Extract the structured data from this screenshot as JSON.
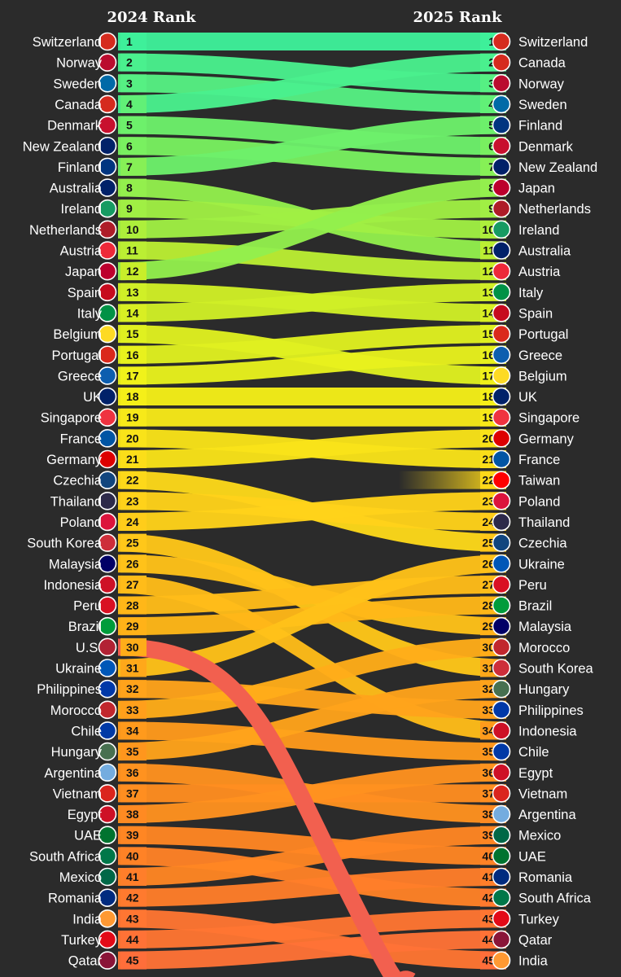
{
  "chart_data": {
    "type": "slope",
    "left_header": "2024 Rank",
    "right_header": "2025 Rank",
    "rank_2024": [
      "Switzerland",
      "Norway",
      "Sweden",
      "Canada",
      "Denmark",
      "New Zealand",
      "Finland",
      "Australia",
      "Ireland",
      "Netherlands",
      "Austria",
      "Japan",
      "Spain",
      "Italy",
      "Belgium",
      "Portugal",
      "Greece",
      "UK",
      "Singapore",
      "France",
      "Germany",
      "Czechia",
      "Thailand",
      "Poland",
      "South Korea",
      "Malaysia",
      "Indonesia",
      "Peru",
      "Brazil",
      "U.S.",
      "Ukraine",
      "Philippines",
      "Morocco",
      "Chile",
      "Hungary",
      "Argentina",
      "Vietnam",
      "Egypt",
      "UAE",
      "South Africa",
      "Mexico",
      "Romania",
      "India",
      "Turkey",
      "Qatar"
    ],
    "rank_2025": [
      "Switzerland",
      "Canada",
      "Norway",
      "Sweden",
      "Finland",
      "Denmark",
      "New Zealand",
      "Japan",
      "Netherlands",
      "Ireland",
      "Australia",
      "Austria",
      "Italy",
      "Spain",
      "Portugal",
      "Greece",
      "Belgium",
      "UK",
      "Singapore",
      "Germany",
      "France",
      "Taiwan",
      "Poland",
      "Thailand",
      "Czechia",
      "Ukraine",
      "Peru",
      "Brazil",
      "Malaysia",
      "Morocco",
      "South Korea",
      "Hungary",
      "Philippines",
      "Indonesia",
      "Chile",
      "Egypt",
      "Vietnam",
      "Argentina",
      "Mexico",
      "UAE",
      "Romania",
      "South Africa",
      "Turkey",
      "Qatar",
      "India"
    ],
    "flows": [
      {
        "country": "Switzerland",
        "rank_2024": 1,
        "rank_2025": 1
      },
      {
        "country": "Norway",
        "rank_2024": 2,
        "rank_2025": 3
      },
      {
        "country": "Sweden",
        "rank_2024": 3,
        "rank_2025": 4
      },
      {
        "country": "Canada",
        "rank_2024": 4,
        "rank_2025": 2
      },
      {
        "country": "Denmark",
        "rank_2024": 5,
        "rank_2025": 6
      },
      {
        "country": "New Zealand",
        "rank_2024": 6,
        "rank_2025": 7
      },
      {
        "country": "Finland",
        "rank_2024": 7,
        "rank_2025": 5
      },
      {
        "country": "Australia",
        "rank_2024": 8,
        "rank_2025": 11
      },
      {
        "country": "Ireland",
        "rank_2024": 9,
        "rank_2025": 10
      },
      {
        "country": "Netherlands",
        "rank_2024": 10,
        "rank_2025": 9
      },
      {
        "country": "Austria",
        "rank_2024": 11,
        "rank_2025": 12
      },
      {
        "country": "Japan",
        "rank_2024": 12,
        "rank_2025": 8
      },
      {
        "country": "Spain",
        "rank_2024": 13,
        "rank_2025": 14
      },
      {
        "country": "Italy",
        "rank_2024": 14,
        "rank_2025": 13
      },
      {
        "country": "Belgium",
        "rank_2024": 15,
        "rank_2025": 17
      },
      {
        "country": "Portugal",
        "rank_2024": 16,
        "rank_2025": 15
      },
      {
        "country": "Greece",
        "rank_2024": 17,
        "rank_2025": 16
      },
      {
        "country": "UK",
        "rank_2024": 18,
        "rank_2025": 18
      },
      {
        "country": "Singapore",
        "rank_2024": 19,
        "rank_2025": 19
      },
      {
        "country": "France",
        "rank_2024": 20,
        "rank_2025": 21
      },
      {
        "country": "Germany",
        "rank_2024": 21,
        "rank_2025": 20
      },
      {
        "country": "Czechia",
        "rank_2024": 22,
        "rank_2025": 25
      },
      {
        "country": "Thailand",
        "rank_2024": 23,
        "rank_2025": 24
      },
      {
        "country": "Poland",
        "rank_2024": 24,
        "rank_2025": 23
      },
      {
        "country": "South Korea",
        "rank_2024": 25,
        "rank_2025": 31
      },
      {
        "country": "Malaysia",
        "rank_2024": 26,
        "rank_2025": 29
      },
      {
        "country": "Indonesia",
        "rank_2024": 27,
        "rank_2025": 34
      },
      {
        "country": "Peru",
        "rank_2024": 28,
        "rank_2025": 27
      },
      {
        "country": "Brazil",
        "rank_2024": 29,
        "rank_2025": 28
      },
      {
        "country": "U.S.",
        "rank_2024": 30,
        "rank_2025": null
      },
      {
        "country": "Ukraine",
        "rank_2024": 31,
        "rank_2025": 26
      },
      {
        "country": "Philippines",
        "rank_2024": 32,
        "rank_2025": 33
      },
      {
        "country": "Morocco",
        "rank_2024": 33,
        "rank_2025": 30
      },
      {
        "country": "Chile",
        "rank_2024": 34,
        "rank_2025": 35
      },
      {
        "country": "Hungary",
        "rank_2024": 35,
        "rank_2025": 32
      },
      {
        "country": "Argentina",
        "rank_2024": 36,
        "rank_2025": 38
      },
      {
        "country": "Vietnam",
        "rank_2024": 37,
        "rank_2025": 37
      },
      {
        "country": "Egypt",
        "rank_2024": 38,
        "rank_2025": 36
      },
      {
        "country": "UAE",
        "rank_2024": 39,
        "rank_2025": 40
      },
      {
        "country": "South Africa",
        "rank_2024": 40,
        "rank_2025": 42
      },
      {
        "country": "Mexico",
        "rank_2024": 41,
        "rank_2025": 39
      },
      {
        "country": "Romania",
        "rank_2024": 42,
        "rank_2025": 41
      },
      {
        "country": "India",
        "rank_2024": 43,
        "rank_2025": 45
      },
      {
        "country": "Turkey",
        "rank_2024": 44,
        "rank_2025": 43
      },
      {
        "country": "Qatar",
        "rank_2024": 45,
        "rank_2025": 44
      },
      {
        "country": "Taiwan",
        "rank_2024": null,
        "rank_2025": 22
      }
    ],
    "highlight": {
      "country": "U.S.",
      "color": "#f2604f"
    },
    "color_scale": [
      "#3ef09a",
      "#7ff05a",
      "#c8ee2a",
      "#f4f218",
      "#ffd21a",
      "#ffb418",
      "#ff9a1c",
      "#ff8424",
      "#ff6e3a"
    ]
  },
  "flags": {
    "Switzerland": "#d52b1e",
    "Norway": "#ba0c2f",
    "Sweden": "#006aa7",
    "Canada": "#d52b1e",
    "Denmark": "#c8102e",
    "New Zealand": "#012169",
    "Finland": "#003580",
    "Australia": "#012169",
    "Ireland": "#169b62",
    "Netherlands": "#ae1c28",
    "Austria": "#ed2939",
    "Japan": "#bc002d",
    "Spain": "#c60b1e",
    "Italy": "#009246",
    "Belgium": "#fdda24",
    "Portugal": "#da291c",
    "Greece": "#0d5eaf",
    "UK": "#012169",
    "Singapore": "#ef3340",
    "France": "#0055a4",
    "Germany": "#dd0000",
    "Czechia": "#11457e",
    "Thailand": "#2d2a4a",
    "Poland": "#dc143c",
    "South Korea": "#cd2e3a",
    "Malaysia": "#010066",
    "Indonesia": "#ce1126",
    "Peru": "#d91023",
    "Brazil": "#009c3b",
    "U.S.": "#b22234",
    "Ukraine": "#0057b7",
    "Philippines": "#0038a8",
    "Morocco": "#c1272d",
    "Chile": "#0039a6",
    "Hungary": "#477050",
    "Argentina": "#74acdf",
    "Vietnam": "#da251d",
    "Egypt": "#ce1126",
    "UAE": "#00732f",
    "South Africa": "#007749",
    "Mexico": "#006847",
    "Romania": "#002b7f",
    "India": "#ff9933",
    "Turkey": "#e30a17",
    "Qatar": "#8a1538",
    "Taiwan": "#fe0000"
  }
}
